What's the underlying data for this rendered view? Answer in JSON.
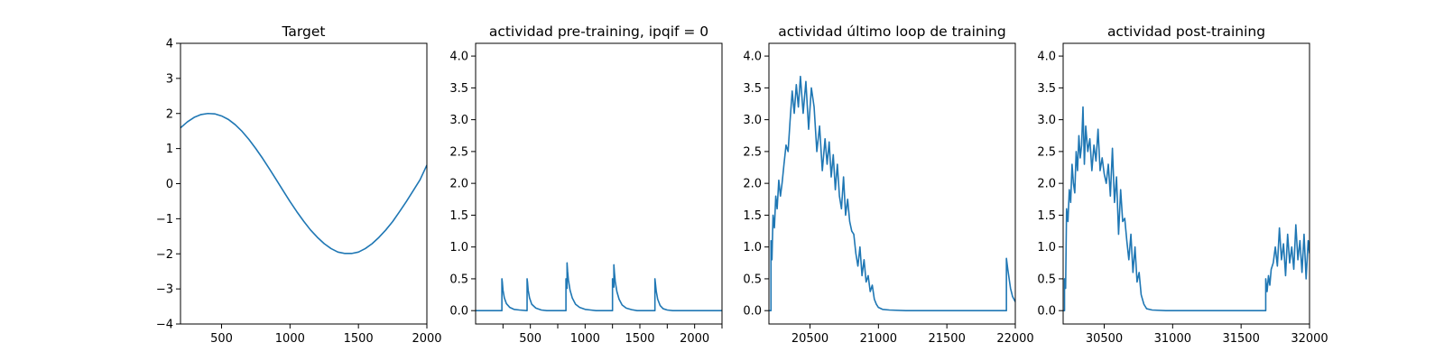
{
  "chart_data": [
    {
      "type": "line",
      "title": "Target",
      "xlabel": "",
      "ylabel": "",
      "xlim": [
        200,
        2000
      ],
      "ylim": [
        -4,
        4
      ],
      "xticks": [
        500,
        1000,
        1500,
        2000
      ],
      "xtick_labels": [
        "500",
        "1000",
        "1500",
        "2000"
      ],
      "yticks": [
        -4,
        -3,
        -2,
        -1,
        0,
        1,
        2,
        3,
        4
      ],
      "ytick_labels": [
        "−4",
        "−3",
        "−2",
        "−1",
        "0",
        "1",
        "2",
        "3",
        "4"
      ],
      "grid": false,
      "series": [
        {
          "name": "target",
          "color": "#1f77b4",
          "x": [
            200,
            250,
            300,
            350,
            400,
            450,
            500,
            550,
            600,
            650,
            700,
            750,
            800,
            850,
            900,
            950,
            1000,
            1050,
            1100,
            1150,
            1200,
            1250,
            1300,
            1350,
            1400,
            1450,
            1500,
            1550,
            1600,
            1650,
            1700,
            1750,
            1800,
            1850,
            1900,
            1950,
            2000
          ],
          "y": [
            1.59,
            1.76,
            1.89,
            1.97,
            2.0,
            1.99,
            1.93,
            1.83,
            1.68,
            1.49,
            1.26,
            1.0,
            0.72,
            0.42,
            0.11,
            -0.2,
            -0.51,
            -0.8,
            -1.07,
            -1.32,
            -1.53,
            -1.71,
            -1.85,
            -1.95,
            -1.99,
            -1.99,
            -1.95,
            -1.85,
            -1.71,
            -1.53,
            -1.32,
            -1.08,
            -0.8,
            -0.51,
            -0.2,
            0.11,
            0.53
          ]
        }
      ]
    },
    {
      "type": "line",
      "title": "actividad pre-training, ipqif = 0",
      "xlabel": "",
      "ylabel": "",
      "xlim": [
        200,
        2000
      ],
      "ylim": [
        -0.21,
        4.2
      ],
      "xticks": [
        400,
        600,
        800,
        1000,
        1200,
        1400,
        1600,
        1800,
        2000
      ],
      "xtick_labels": [
        "",
        "500",
        "",
        "1000",
        "",
        "1500",
        "",
        "2000",
        ""
      ],
      "yticks": [
        0,
        0.5,
        1,
        1.5,
        2,
        2.5,
        3,
        3.5,
        4
      ],
      "ytick_labels": [
        "0.0",
        "0.5",
        "1.0",
        "1.5",
        "2.0",
        "2.5",
        "3.0",
        "3.5",
        "4.0"
      ],
      "grid": false,
      "series": [
        {
          "name": "actividad",
          "color": "#1f77b4",
          "x": [
            200,
            392,
            392,
            395,
            400,
            410,
            425,
            450,
            480,
            520,
            576,
            576,
            579,
            584,
            594,
            610,
            640,
            680,
            720,
            860,
            860,
            864,
            868,
            868,
            872,
            878,
            890,
            906,
            930,
            960,
            1000,
            1040,
            1080,
            1140,
            1200,
            1200,
            1204,
            1210,
            1210,
            1214,
            1220,
            1232,
            1248,
            1270,
            1300,
            1340,
            1380,
            1420,
            1510,
            1510,
            1514,
            1520,
            1530,
            1548,
            1570,
            1600,
            1640,
            1700,
            1800,
            1900,
            2000
          ],
          "y": [
            0,
            0,
            0.5,
            0.45,
            0.32,
            0.2,
            0.11,
            0.05,
            0.02,
            0.01,
            0,
            0.5,
            0.45,
            0.32,
            0.2,
            0.1,
            0.04,
            0.01,
            0,
            0,
            0.5,
            0.38,
            0.35,
            0.75,
            0.62,
            0.48,
            0.32,
            0.2,
            0.1,
            0.05,
            0.02,
            0.01,
            0,
            0,
            0,
            0.5,
            0.38,
            0.37,
            0.72,
            0.6,
            0.46,
            0.3,
            0.18,
            0.09,
            0.04,
            0.015,
            0,
            0,
            0,
            0.5,
            0.42,
            0.3,
            0.18,
            0.08,
            0.03,
            0.01,
            0,
            0,
            0,
            0,
            0
          ]
        }
      ]
    },
    {
      "type": "line",
      "title": "actividad último loop de training",
      "xlabel": "",
      "ylabel": "",
      "xlim": [
        20200,
        22000
      ],
      "ylim": [
        -0.21,
        4.2
      ],
      "xticks": [
        20500,
        21000,
        21500,
        22000
      ],
      "xtick_labels": [
        "20500",
        "21000",
        "21500",
        "22000"
      ],
      "yticks": [
        0,
        0.5,
        1,
        1.5,
        2,
        2.5,
        3,
        3.5,
        4
      ],
      "ytick_labels": [
        "0.0",
        "0.5",
        "1.0",
        "1.5",
        "2.0",
        "2.5",
        "3.0",
        "3.5",
        "4.0"
      ],
      "grid": false,
      "series": [
        {
          "name": "actividad",
          "color": "#1f77b4",
          "x": [
            20200,
            20215,
            20215,
            20222,
            20230,
            20240,
            20250,
            20260,
            20272,
            20284,
            20296,
            20310,
            20325,
            20340,
            20355,
            20370,
            20385,
            20400,
            20415,
            20430,
            20450,
            20470,
            20490,
            20510,
            20530,
            20550,
            20570,
            20590,
            20610,
            20625,
            20640,
            20655,
            20670,
            20685,
            20700,
            20715,
            20730,
            20745,
            20760,
            20775,
            20790,
            20805,
            20820,
            20835,
            20850,
            20865,
            20880,
            20895,
            20910,
            20925,
            20940,
            20955,
            20970,
            20985,
            21000,
            21030,
            21080,
            21200,
            21400,
            21600,
            21800,
            21935,
            21935,
            21945,
            21955,
            21965,
            21980,
            22000
          ],
          "y": [
            0,
            0,
            1.1,
            0.8,
            1.5,
            1.3,
            1.8,
            1.6,
            2.05,
            1.8,
            2.0,
            2.3,
            2.6,
            2.5,
            3.0,
            3.45,
            3.1,
            3.55,
            3.2,
            3.68,
            3.1,
            3.6,
            2.85,
            3.5,
            3.2,
            2.5,
            2.9,
            2.2,
            2.7,
            2.3,
            2.65,
            2.1,
            2.45,
            1.9,
            2.3,
            1.8,
            1.6,
            2.1,
            1.5,
            1.75,
            1.4,
            1.25,
            1.2,
            0.9,
            0.7,
            1.0,
            0.55,
            0.8,
            0.45,
            0.55,
            0.3,
            0.4,
            0.18,
            0.1,
            0.05,
            0.02,
            0.01,
            0,
            0,
            0,
            0,
            0,
            0.82,
            0.65,
            0.5,
            0.35,
            0.22,
            0.14
          ]
        }
      ]
    },
    {
      "type": "line",
      "title": "actividad post-training",
      "xlabel": "",
      "ylabel": "",
      "xlim": [
        30200,
        32000
      ],
      "ylim": [
        -0.21,
        4.2
      ],
      "xticks": [
        30500,
        31000,
        31500,
        32000
      ],
      "xtick_labels": [
        "30500",
        "31000",
        "31500",
        "32000"
      ],
      "yticks": [
        0,
        0.5,
        1,
        1.5,
        2,
        2.5,
        3,
        3.5,
        4
      ],
      "ytick_labels": [
        "0.0",
        "0.5",
        "1.0",
        "1.5",
        "2.0",
        "2.5",
        "3.0",
        "3.5",
        "4.0"
      ],
      "grid": false,
      "series": [
        {
          "name": "actividad",
          "color": "#1f77b4",
          "x": [
            30200,
            30210,
            30210,
            30218,
            30225,
            30235,
            30245,
            30255,
            30265,
            30275,
            30285,
            30295,
            30305,
            30315,
            30325,
            30335,
            30345,
            30355,
            30365,
            30380,
            30395,
            30410,
            30425,
            30440,
            30455,
            30470,
            30485,
            30500,
            30515,
            30530,
            30545,
            30560,
            30575,
            30590,
            30605,
            30620,
            30635,
            30650,
            30665,
            30680,
            30695,
            30710,
            30725,
            30740,
            30755,
            30770,
            30790,
            30810,
            30850,
            30950,
            31100,
            31300,
            31500,
            31680,
            31680,
            31690,
            31700,
            31710,
            31720,
            31735,
            31750,
            31765,
            31780,
            31795,
            31810,
            31825,
            31840,
            31855,
            31870,
            31885,
            31900,
            31915,
            31930,
            31945,
            31960,
            31975,
            31990,
            32000
          ],
          "y": [
            0,
            0,
            0.5,
            0.35,
            1.6,
            1.4,
            1.9,
            1.7,
            2.3,
            2.0,
            1.85,
            2.5,
            2.2,
            2.75,
            2.4,
            2.6,
            3.2,
            2.3,
            2.9,
            2.5,
            2.7,
            2.2,
            2.6,
            2.35,
            2.85,
            2.2,
            2.4,
            2.15,
            2.0,
            2.3,
            1.8,
            2.55,
            1.7,
            2.1,
            1.2,
            1.9,
            1.4,
            1.45,
            1.1,
            0.8,
            1.2,
            0.6,
            1.0,
            0.45,
            0.6,
            0.25,
            0.1,
            0.03,
            0.01,
            0,
            0,
            0,
            0,
            0,
            0.5,
            0.3,
            0.55,
            0.4,
            0.65,
            0.75,
            1.0,
            0.7,
            1.3,
            0.8,
            1.05,
            0.55,
            1.2,
            0.75,
            1.0,
            0.65,
            1.35,
            0.8,
            1.1,
            0.6,
            1.2,
            0.5,
            1.1,
            0.9
          ]
        }
      ]
    }
  ]
}
